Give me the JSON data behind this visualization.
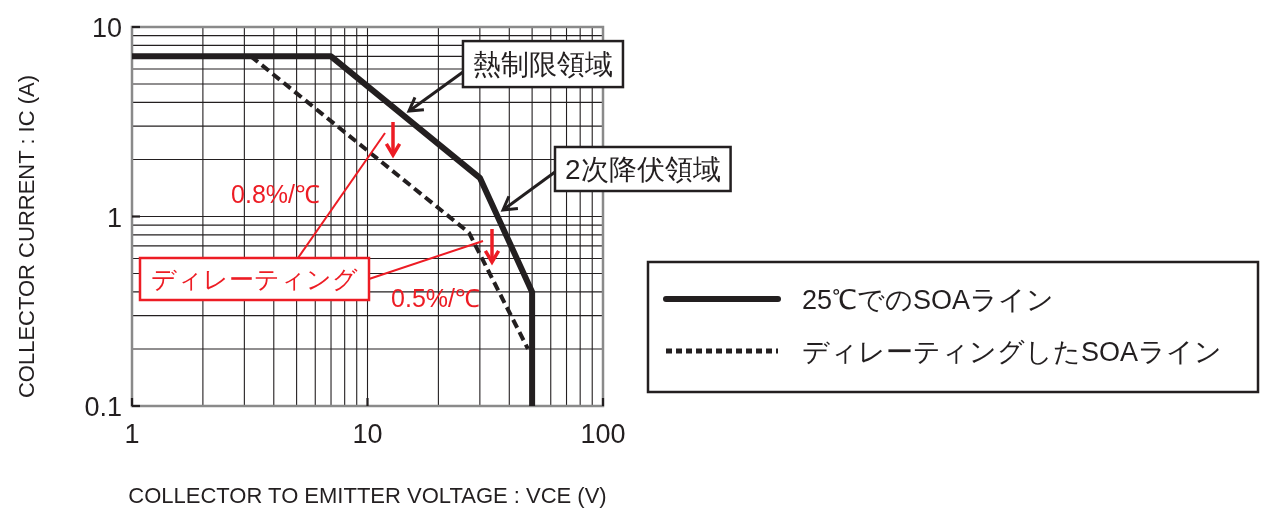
{
  "chart_data": {
    "type": "line",
    "xlabel": "COLLECTOR TO EMITTER VOLTAGE : VCE (V)",
    "ylabel": "COLLECTOR CURRENT : IC (A)",
    "log": "xy",
    "xlim": [
      1,
      100
    ],
    "ylim": [
      0.1,
      10
    ],
    "xticks": [
      1,
      10,
      100
    ],
    "yticks": [
      0.1,
      1,
      10
    ],
    "grid": true,
    "legend": "right",
    "series": [
      {
        "name": "25℃でのSOAライン",
        "color": "#231f20",
        "line_style": "solid",
        "x": [
          1,
          7,
          30,
          50,
          50
        ],
        "values": [
          7,
          7,
          1.6,
          0.4,
          0.1
        ]
      },
      {
        "name": "ディレーティングしたSOAライン",
        "color": "#231f20",
        "line_style": "dashed",
        "x": [
          3.2,
          27,
          48
        ],
        "values": [
          7,
          0.82,
          0.2
        ]
      }
    ],
    "annotations": [
      {
        "text": "熱制限領域",
        "x": 15,
        "y": 3.6
      },
      "2次降伏領域",
      "0.8%/℃",
      "0.5%/℃",
      "ディレーティング"
    ]
  }
}
